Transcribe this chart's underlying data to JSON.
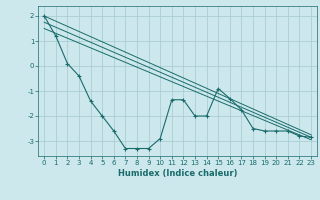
{
  "xlabel": "Humidex (Indice chaleur)",
  "bg_color": "#cce8ec",
  "grid_color": "#aacdd4",
  "line_color": "#1a6b6b",
  "xlim": [
    -0.5,
    23.5
  ],
  "ylim": [
    -3.6,
    2.4
  ],
  "yticks": [
    -3,
    -2,
    -1,
    0,
    1,
    2
  ],
  "xticks": [
    0,
    1,
    2,
    3,
    4,
    5,
    6,
    7,
    8,
    9,
    10,
    11,
    12,
    13,
    14,
    15,
    16,
    17,
    18,
    19,
    20,
    21,
    22,
    23
  ],
  "series": [
    {
      "x": [
        0,
        1,
        2,
        3,
        4,
        5,
        6,
        7,
        8,
        9,
        10,
        11,
        12,
        13,
        14,
        15,
        16,
        17,
        18,
        19,
        20,
        21,
        22,
        23
      ],
      "y": [
        2.0,
        1.2,
        0.1,
        -0.4,
        -1.4,
        -2.0,
        -2.6,
        -3.3,
        -3.3,
        -3.3,
        -2.9,
        -1.35,
        -1.35,
        -2.0,
        -2.0,
        -0.9,
        -1.3,
        -1.75,
        -2.5,
        -2.6,
        -2.6,
        -2.6,
        -2.8,
        -2.85
      ],
      "has_markers": true
    },
    {
      "x": [
        0,
        23
      ],
      "y": [
        2.0,
        -2.75
      ],
      "has_markers": false
    },
    {
      "x": [
        0,
        23
      ],
      "y": [
        1.75,
        -2.85
      ],
      "has_markers": false
    },
    {
      "x": [
        0,
        23
      ],
      "y": [
        1.5,
        -2.95
      ],
      "has_markers": false
    }
  ]
}
